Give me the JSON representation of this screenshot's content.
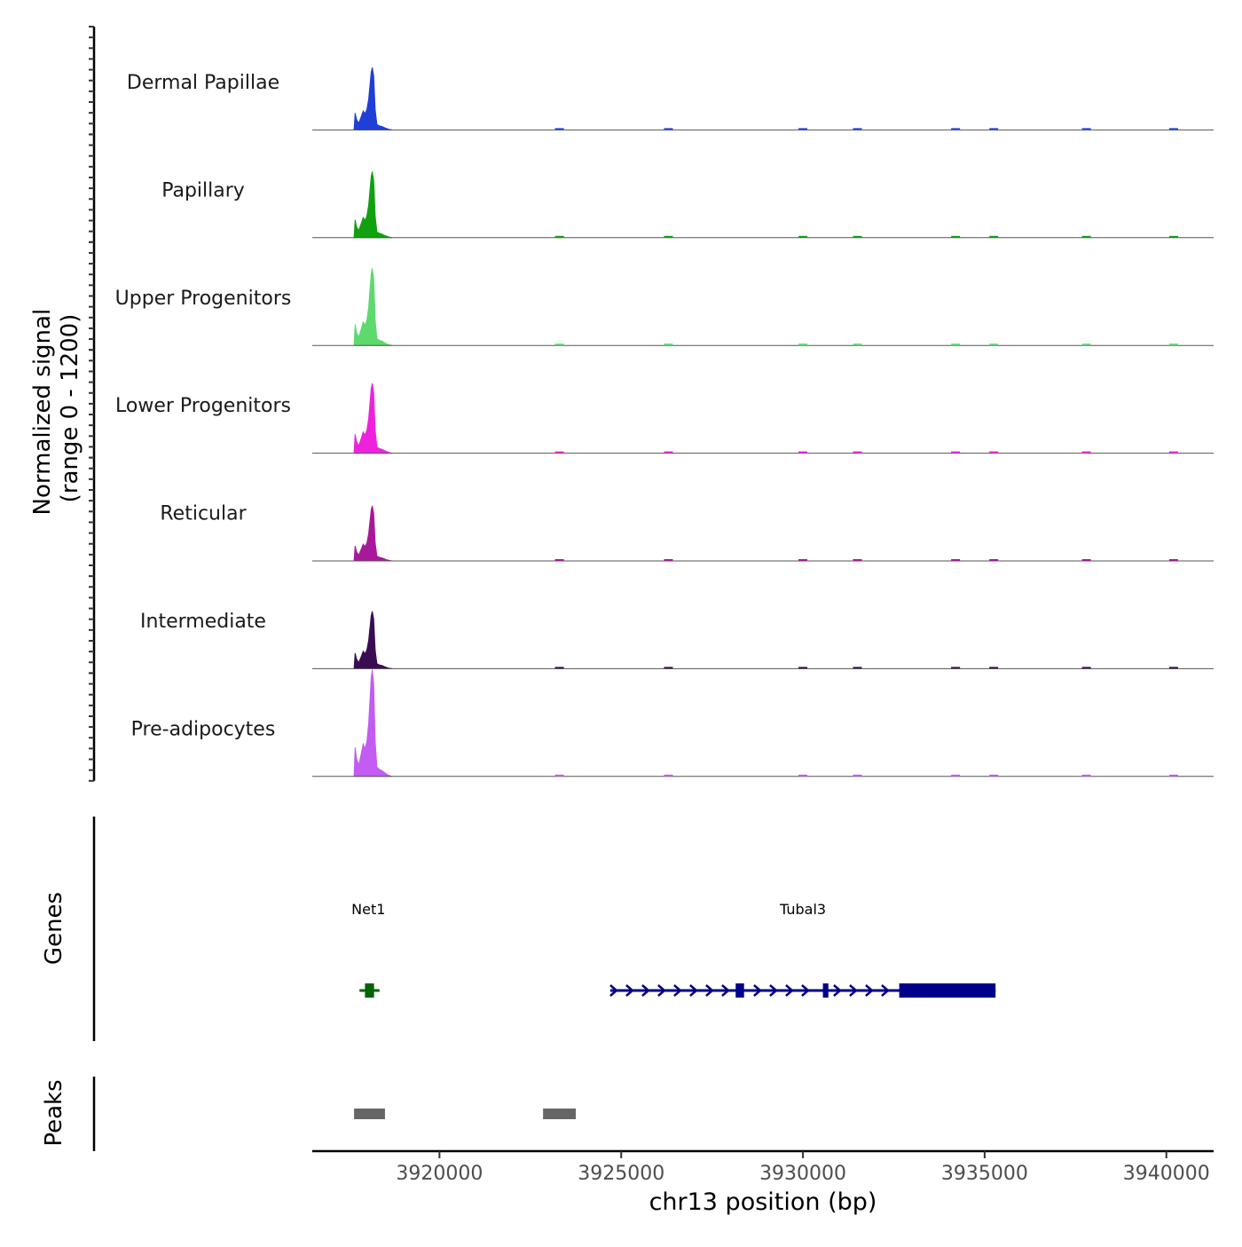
{
  "chart_data": {
    "type": "area",
    "title": "",
    "ylabel": "Normalized signal\n(range 0 - 1200)",
    "ylabel_lines": [
      "Normalized signal",
      "(range 0 - 1200)"
    ],
    "ylim": [
      0,
      1200
    ],
    "xlabel": "chr13 position (bp)",
    "xlim": [
      3916500,
      3941300
    ],
    "xticks": [
      3920000,
      3925000,
      3930000,
      3935000,
      3940000
    ],
    "xtick_labels": [
      "3920000",
      "3925000",
      "3930000",
      "3935000",
      "3940000"
    ],
    "series": [
      {
        "name": "Dermal Papillae",
        "color": "#1f3fd6",
        "scale": 0.85
      },
      {
        "name": "Papillary",
        "color": "#10a010",
        "scale": 0.9
      },
      {
        "name": "Upper Progenitors",
        "color": "#5ed96e",
        "scale": 1.05
      },
      {
        "name": "Lower Progenitors",
        "color": "#ee22dd",
        "scale": 0.95
      },
      {
        "name": "Reticular",
        "color": "#a8189a",
        "scale": 0.75
      },
      {
        "name": "Intermediate",
        "color": "#3a0d52",
        "scale": 0.78
      },
      {
        "name": "Pre-adipocytes",
        "color": "#c25cf2",
        "scale": 1.45
      }
    ],
    "signal_profile": [
      [
        3917650,
        0
      ],
      [
        3917680,
        0.25
      ],
      [
        3917720,
        0.15
      ],
      [
        3917780,
        0.1
      ],
      [
        3917850,
        0.2
      ],
      [
        3917900,
        0.28
      ],
      [
        3917950,
        0.24
      ],
      [
        3918000,
        0.3
      ],
      [
        3918050,
        0.45
      ],
      [
        3918120,
        0.85
      ],
      [
        3918150,
        0.92
      ],
      [
        3918190,
        0.8
      ],
      [
        3918230,
        0.3
      ],
      [
        3918280,
        0.08
      ],
      [
        3918350,
        0.06
      ],
      [
        3918420,
        0.05
      ],
      [
        3918500,
        0.03
      ],
      [
        3918600,
        0.01
      ],
      [
        3918700,
        0
      ]
    ],
    "genes": [
      {
        "name": "Net1",
        "strand": "-",
        "color": "#006400",
        "start": 3917800,
        "end": 3918350,
        "exons": [
          [
            3917950,
            3918200
          ]
        ]
      },
      {
        "name": "Tubal3",
        "strand": "+",
        "color": "#00008b",
        "start": 3924700,
        "end": 3935300,
        "exons": [
          [
            3928150,
            3928380
          ],
          [
            3930550,
            3930700
          ],
          [
            3932650,
            3935300
          ]
        ]
      }
    ],
    "peaks": [
      [
        3917650,
        3918500
      ],
      [
        3922850,
        3923750
      ]
    ],
    "panels": {
      "upper": "",
      "genes": "Genes",
      "peaks": "Peaks"
    }
  }
}
